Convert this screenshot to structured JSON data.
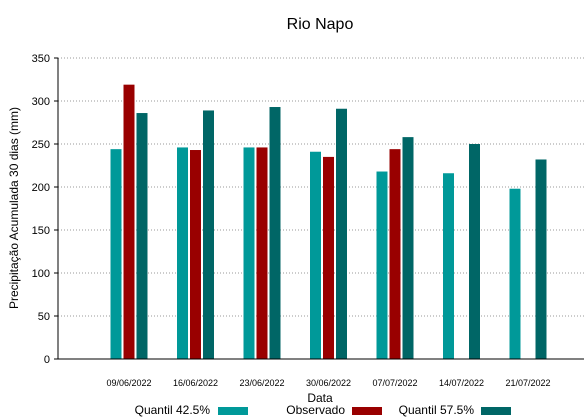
{
  "chart_data": {
    "type": "bar",
    "title": "Rio Napo",
    "xlabel": "Data",
    "ylabel": "Precipitação Acumulada 30 dias (mm)",
    "ylim": [
      0,
      350
    ],
    "yticks": [
      0,
      50,
      100,
      150,
      200,
      250,
      300,
      350
    ],
    "grid": true,
    "legend_position": "bottom",
    "categories": [
      "09/06/2022",
      "16/06/2022",
      "23/06/2022",
      "30/06/2022",
      "07/07/2022",
      "14/07/2022",
      "21/07/2022"
    ],
    "series": [
      {
        "name": "Quantil 42.5%",
        "color": "#009999",
        "values": [
          244,
          246,
          246,
          241,
          218,
          216,
          198
        ]
      },
      {
        "name": "Observado",
        "color": "#990000",
        "values": [
          319,
          243,
          246,
          235,
          244,
          null,
          null
        ]
      },
      {
        "name": "Quantil 57.5%",
        "color": "#006666",
        "values": [
          286,
          289,
          293,
          291,
          258,
          250,
          232
        ]
      }
    ]
  }
}
